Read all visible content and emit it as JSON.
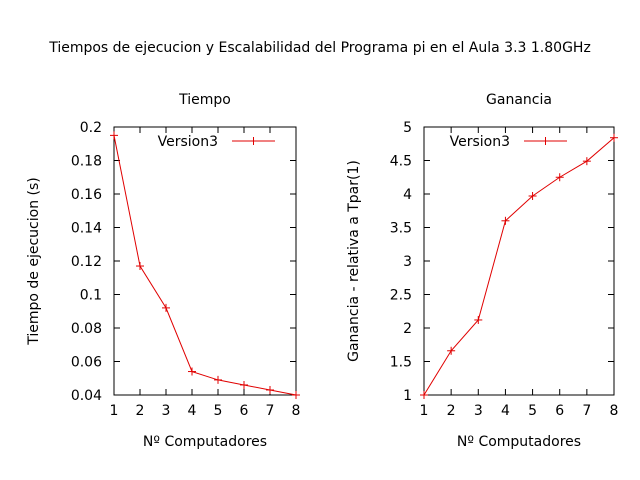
{
  "figure_title": "Tiempos de ejecucion y Escalabilidad del Programa pi en el Aula 3.3 1.80GHz",
  "colors": {
    "series": "#e00000",
    "axis": "#000000"
  },
  "chart_data": [
    {
      "type": "line",
      "title": "Tiempo",
      "xlabel": "Nº Computadores",
      "ylabel": "Tiempo de ejecucion (s)",
      "xlim": [
        1,
        8
      ],
      "ylim": [
        0.04,
        0.2
      ],
      "grid": false,
      "legend_position": "top-right",
      "x_ticks": [
        "1",
        "2",
        "3",
        "4",
        "5",
        "6",
        "7",
        "8"
      ],
      "y_ticks": [
        "0.04",
        "0.06",
        "0.08",
        "0.1",
        "0.12",
        "0.14",
        "0.16",
        "0.18",
        "0.2"
      ],
      "x": [
        1,
        2,
        3,
        4,
        5,
        6,
        7,
        8
      ],
      "series": [
        {
          "name": "Version3",
          "values": [
            0.195,
            0.117,
            0.092,
            0.054,
            0.049,
            0.046,
            0.043,
            0.04
          ]
        }
      ]
    },
    {
      "type": "line",
      "title": "Ganancia",
      "xlabel": "Nº Computadores",
      "ylabel": "Ganancia - relativa a Tpar(1)",
      "xlim": [
        1,
        8
      ],
      "ylim": [
        1,
        5
      ],
      "grid": false,
      "legend_position": "top-right",
      "x_ticks": [
        "1",
        "2",
        "3",
        "4",
        "5",
        "6",
        "7",
        "8"
      ],
      "y_ticks": [
        "1",
        "1.5",
        "2",
        "2.5",
        "3",
        "3.5",
        "4",
        "4.5",
        "5"
      ],
      "x": [
        1,
        2,
        3,
        4,
        5,
        6,
        7,
        8
      ],
      "series": [
        {
          "name": "Version3",
          "values": [
            1.0,
            1.66,
            2.12,
            3.6,
            3.97,
            4.25,
            4.49,
            4.84
          ]
        }
      ]
    }
  ]
}
